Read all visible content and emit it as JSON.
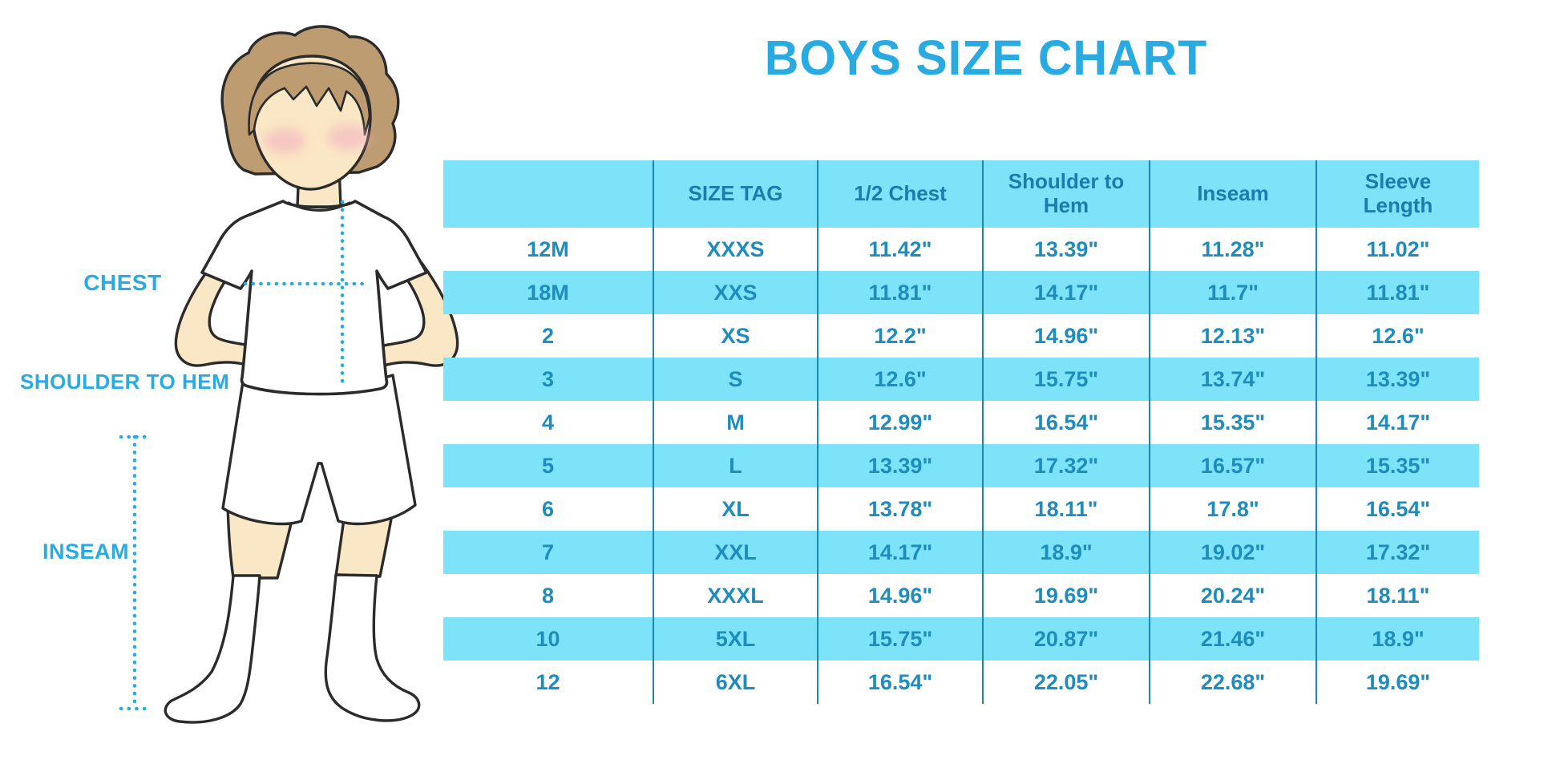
{
  "title": "BOYS SIZE CHART",
  "figure": {
    "description": "illustrated boy in white t-shirt, shorts and knee socks with measurement guides",
    "labels": {
      "chest": "CHEST",
      "shoulder_to_hem": "SHOULDER TO HEM",
      "inseam": "INSEAM"
    }
  },
  "chart_data": {
    "type": "table",
    "title": "BOYS SIZE CHART",
    "columns": [
      "",
      "SIZE TAG",
      "1/2 Chest",
      "Shoulder to Hem",
      "Inseam",
      "Sleeve Length"
    ],
    "rows": [
      [
        "12M",
        "XXXS",
        "11.42\"",
        "13.39\"",
        "11.28\"",
        "11.02\""
      ],
      [
        "18M",
        "XXS",
        "11.81\"",
        "14.17\"",
        "11.7\"",
        "11.81\""
      ],
      [
        "2",
        "XS",
        "12.2\"",
        "14.96\"",
        "12.13\"",
        "12.6\""
      ],
      [
        "3",
        "S",
        "12.6\"",
        "15.75\"",
        "13.74\"",
        "13.39\""
      ],
      [
        "4",
        "M",
        "12.99\"",
        "16.54\"",
        "15.35\"",
        "14.17\""
      ],
      [
        "5",
        "L",
        "13.39\"",
        "17.32\"",
        "16.57\"",
        "15.35\""
      ],
      [
        "6",
        "XL",
        "13.78\"",
        "18.11\"",
        "17.8\"",
        "16.54\""
      ],
      [
        "7",
        "XXL",
        "14.17\"",
        "18.9\"",
        "19.02\"",
        "17.32\""
      ],
      [
        "8",
        "XXXL",
        "14.96\"",
        "19.69\"",
        "20.24\"",
        "18.11\""
      ],
      [
        "10",
        "5XL",
        "15.75\"",
        "20.87\"",
        "21.46\"",
        "18.9\""
      ],
      [
        "12",
        "6XL",
        "16.54\"",
        "22.05\"",
        "22.68\"",
        "19.69\""
      ]
    ],
    "layout": {
      "striped_rows": true,
      "stripe_pattern": "white/cyan alternating, header cyan",
      "gridlines": "vertical only"
    }
  },
  "colors": {
    "accent_blue": "#29ABE2",
    "header_bg": "#7DE3F9",
    "stripe_bg": "#7DE3F9",
    "divider": "#1C86B8",
    "header_text": "#1C7CAD",
    "cell_text": "#1F8CBE",
    "skin": "#FAE7C5",
    "hair": "#BE9C72",
    "blush": "#F2AFC0",
    "outline": "#2B2B2B"
  }
}
